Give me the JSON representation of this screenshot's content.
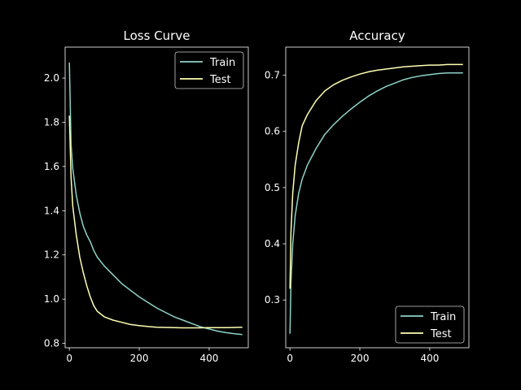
{
  "colors": {
    "train": "#8dd3c7",
    "test": "#feffb3",
    "background": "#000000",
    "foreground": "#ffffff"
  },
  "chart_data": [
    {
      "type": "line",
      "title": "Loss Curve",
      "xlabel": "",
      "ylabel": "",
      "xlim": [
        -12,
        512
      ],
      "ylim": [
        0.78,
        2.14
      ],
      "xticks": [
        0,
        200,
        400
      ],
      "yticks": [
        0.8,
        1.0,
        1.2,
        1.4,
        1.6,
        1.8,
        2.0
      ],
      "grid": false,
      "legend": "upper right",
      "series": [
        {
          "name": "Train",
          "x": [
            0,
            5,
            10,
            20,
            30,
            40,
            50,
            60,
            70,
            80,
            100,
            125,
            150,
            175,
            200,
            225,
            250,
            275,
            300,
            325,
            350,
            375,
            400,
            425,
            450,
            475,
            495
          ],
          "y": [
            2.07,
            1.7,
            1.59,
            1.47,
            1.39,
            1.33,
            1.29,
            1.26,
            1.22,
            1.19,
            1.15,
            1.11,
            1.07,
            1.04,
            1.01,
            0.985,
            0.96,
            0.94,
            0.92,
            0.905,
            0.89,
            0.875,
            0.865,
            0.855,
            0.848,
            0.843,
            0.84
          ]
        },
        {
          "name": "Test",
          "x": [
            0,
            5,
            10,
            20,
            30,
            40,
            50,
            60,
            70,
            80,
            100,
            125,
            150,
            175,
            200,
            225,
            250,
            275,
            300,
            325,
            350,
            375,
            400,
            425,
            450,
            475,
            495
          ],
          "y": [
            1.83,
            1.55,
            1.42,
            1.29,
            1.19,
            1.12,
            1.06,
            1.01,
            0.97,
            0.945,
            0.92,
            0.905,
            0.895,
            0.885,
            0.88,
            0.876,
            0.873,
            0.872,
            0.871,
            0.87,
            0.87,
            0.87,
            0.871,
            0.871,
            0.871,
            0.872,
            0.873
          ]
        }
      ]
    },
    {
      "type": "line",
      "title": "Accuracy",
      "xlabel": "",
      "ylabel": "",
      "xlim": [
        -12,
        512
      ],
      "ylim": [
        0.215,
        0.75
      ],
      "xticks": [
        0,
        200,
        400
      ],
      "yticks": [
        0.3,
        0.4,
        0.5,
        0.6,
        0.7
      ],
      "grid": false,
      "legend": "lower right",
      "series": [
        {
          "name": "Train",
          "x": [
            0,
            3,
            8,
            15,
            25,
            35,
            50,
            75,
            100,
            125,
            150,
            175,
            200,
            225,
            250,
            275,
            300,
            325,
            350,
            375,
            400,
            425,
            450,
            475,
            495
          ],
          "y": [
            0.24,
            0.33,
            0.4,
            0.45,
            0.49,
            0.515,
            0.54,
            0.57,
            0.595,
            0.612,
            0.627,
            0.64,
            0.652,
            0.663,
            0.672,
            0.68,
            0.686,
            0.692,
            0.696,
            0.699,
            0.701,
            0.703,
            0.704,
            0.704,
            0.704
          ]
        },
        {
          "name": "Test",
          "x": [
            0,
            3,
            8,
            15,
            25,
            35,
            50,
            75,
            100,
            125,
            150,
            175,
            200,
            225,
            250,
            275,
            300,
            325,
            350,
            375,
            400,
            425,
            450,
            475,
            495
          ],
          "y": [
            0.32,
            0.42,
            0.49,
            0.54,
            0.58,
            0.61,
            0.63,
            0.655,
            0.672,
            0.683,
            0.691,
            0.697,
            0.702,
            0.706,
            0.709,
            0.711,
            0.713,
            0.715,
            0.716,
            0.717,
            0.718,
            0.718,
            0.719,
            0.719,
            0.719
          ]
        }
      ]
    }
  ]
}
